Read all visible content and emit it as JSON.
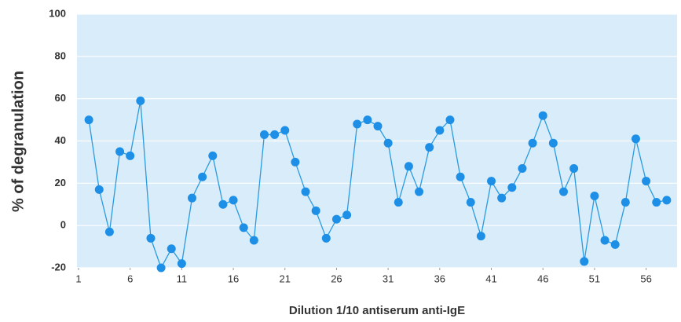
{
  "chart_data": {
    "type": "line",
    "x_label": "Dilution 1/10  antiserum anti-IgE",
    "y_label": "% of degranulation",
    "x": [
      2,
      3,
      4,
      5,
      6,
      7,
      8,
      9,
      10,
      11,
      12,
      13,
      14,
      15,
      16,
      17,
      18,
      19,
      20,
      21,
      22,
      23,
      24,
      25,
      26,
      27,
      28,
      29,
      30,
      31,
      32,
      33,
      34,
      35,
      36,
      37,
      38,
      39,
      40,
      41,
      42,
      43,
      44,
      45,
      46,
      47,
      48,
      49,
      50,
      51,
      52,
      53,
      54,
      55,
      56,
      57,
      58
    ],
    "series": [
      {
        "name": "degranulation",
        "color": "#2a9be0",
        "values": [
          50,
          17,
          -3,
          35,
          33,
          59,
          -6,
          -20,
          -11,
          -18,
          13,
          23,
          33,
          10,
          12,
          -1,
          -7,
          43,
          43,
          45,
          30,
          16,
          7,
          -6,
          3,
          5,
          48,
          50,
          47,
          39,
          11,
          28,
          16,
          37,
          45,
          50,
          23,
          11,
          -5,
          21,
          13,
          18,
          27,
          39,
          52,
          39,
          16,
          27,
          -17,
          14,
          -7,
          -9,
          11,
          41,
          21,
          11,
          12
        ]
      }
    ],
    "xlim": [
      1,
      59
    ],
    "xticks": [
      1,
      6,
      11,
      16,
      21,
      26,
      31,
      36,
      41,
      46,
      51,
      56
    ],
    "ylim": [
      -20,
      100
    ],
    "yticks": [
      -20,
      0,
      20,
      40,
      60,
      80,
      100
    ],
    "grid": true,
    "background": "#d8ecfa",
    "marker_color": "#1d8fe6"
  }
}
